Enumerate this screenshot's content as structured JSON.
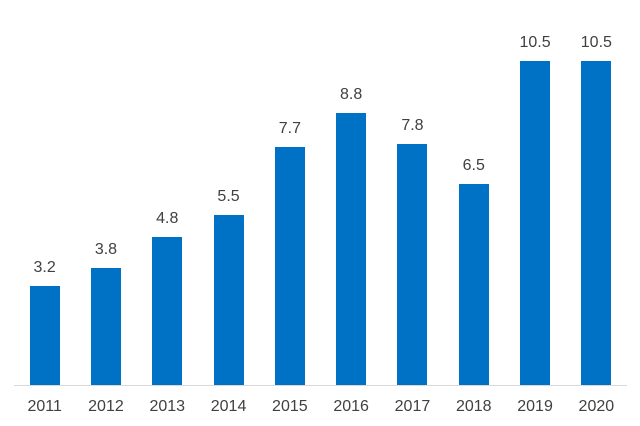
{
  "chart_data": {
    "type": "bar",
    "categories": [
      "2011",
      "2012",
      "2013",
      "2014",
      "2015",
      "2016",
      "2017",
      "2018",
      "2019",
      "2020"
    ],
    "values": [
      3.2,
      3.8,
      4.8,
      5.5,
      7.7,
      8.8,
      7.8,
      6.5,
      10.5,
      10.5
    ],
    "value_labels": [
      "3.2",
      "3.8",
      "4.8",
      "5.5",
      "7.7",
      "8.8",
      "7.8",
      "6.5",
      "10.5",
      "10.5"
    ],
    "ylim": [
      0,
      12.5
    ],
    "grid": false,
    "legend": "none",
    "y_axis_visible": false,
    "data_labels_position": "outside-end",
    "colors": {
      "bar": "#0072C6",
      "value_label": "#404040",
      "x_label": "#404040",
      "axis_line": "#D9D9D9",
      "background": "#ffffff"
    }
  }
}
